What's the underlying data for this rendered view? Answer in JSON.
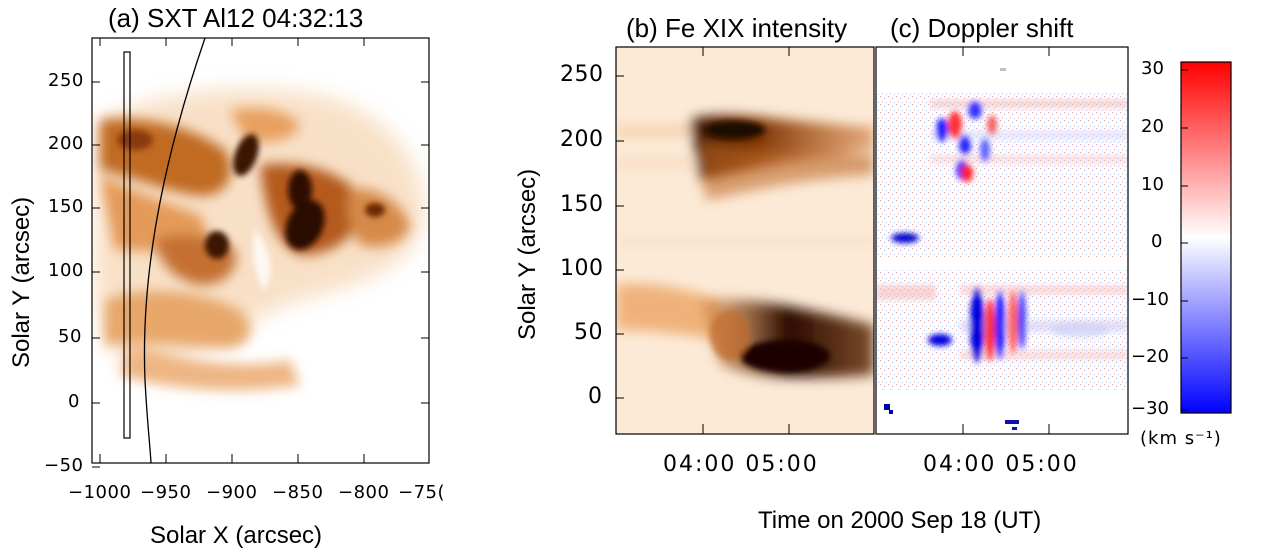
{
  "panel_a": {
    "title": "(a)  SXT  Al12 04:32:13",
    "xlabel": "Solar X (arcsec)",
    "ylabel": "Solar Y (arcsec)",
    "xticks": [
      "−1000",
      "−950",
      "−900",
      "−850",
      "−800",
      "−75("
    ],
    "yticks": [
      "250",
      "200",
      "150",
      "100",
      "50",
      "0",
      "−50"
    ]
  },
  "panel_b": {
    "title": "(b)  Fe XIX intensity",
    "ylabel": "Solar Y (arcsec)",
    "yticks": [
      "250",
      "200",
      "150",
      "100",
      "50",
      "0"
    ],
    "xticks": "04:00  05:00"
  },
  "panel_c": {
    "title": "(c) Doppler shift",
    "xticks": "04:00  05:00"
  },
  "colorbar": {
    "ticks": [
      "30",
      "20",
      "10",
      "0",
      "−10",
      "−20",
      "−30"
    ],
    "unit": "(km s⁻¹)",
    "colors": {
      "top": "#ff0000",
      "middle": "#ffffff",
      "bottom": "#0000ff"
    }
  },
  "shared_xlabel": "Time on 2000 Sep 18 (UT)",
  "colors": {
    "intensity_dark": "#3a1400",
    "intensity_mid": "#d2782a",
    "intensity_light": "#fbe7d2"
  }
}
